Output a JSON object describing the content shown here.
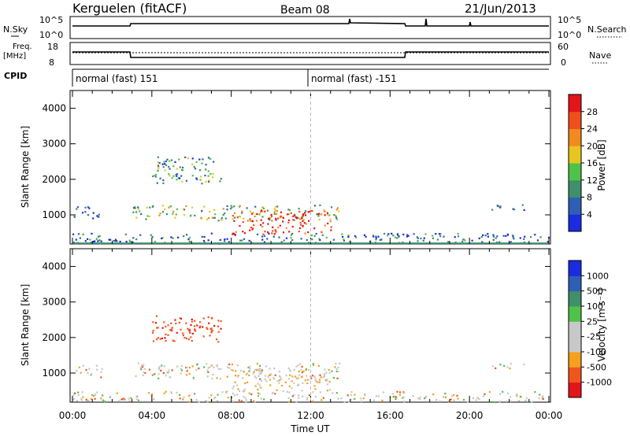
{
  "header": {
    "station": "Kerguelen (fitACF)",
    "beam": "Beam 08",
    "date": "21/Jun/2013"
  },
  "left_labels": {
    "nsky": "N.Sky",
    "freq_line1": "Freq.",
    "freq_line2": "[MHz]",
    "cpid": "CPID"
  },
  "right_labels": {
    "nsearch": "N.Search",
    "nave": "Nave"
  },
  "nsky_ticks": {
    "top": "10^5",
    "bottom": "10^0"
  },
  "freq_ticks": {
    "top": "18",
    "bottom": "8"
  },
  "nave_ticks": {
    "top": "60",
    "bottom": "0"
  },
  "cpid_entries": [
    {
      "label": "normal (fast) 151",
      "start_hour": 0
    },
    {
      "label": "normal (fast) -151",
      "start_hour": 12
    }
  ],
  "colors": {
    "power_scale": [
      "#1a2be0",
      "#2f5fb5",
      "#3f8f6a",
      "#4fc24a",
      "#e8c620",
      "#f28a1e",
      "#f04e1a",
      "#e4141c"
    ],
    "velocity_scale": [
      "#e4141c",
      "#f0561c",
      "#f5a01e",
      "#c8c8c8",
      "#c8c8c8",
      "#4fc24a",
      "#3f8f6a",
      "#2f5fb5",
      "#1a2be0"
    ]
  },
  "chart_data": [
    {
      "type": "heatmap",
      "title": "Power",
      "ylabel": "Slant Range [km]",
      "colorbar_label": "Power [dB]",
      "colorbar_ticks": [
        "4",
        "8",
        "12",
        "16",
        "20",
        "24",
        "28"
      ],
      "x_ticks": [
        "00:00",
        "04:00",
        "08:00",
        "12:00",
        "16:00",
        "20:00",
        "00:00"
      ],
      "y_ticks": [
        "1000",
        "2000",
        "3000",
        "4000"
      ],
      "ylim": [
        180,
        4500
      ],
      "xlim_hours": [
        0,
        24
      ],
      "regions": [
        {
          "name": "near-range",
          "t": [
            0,
            24
          ],
          "r": [
            200,
            500
          ],
          "level": 0.2
        },
        {
          "name": "band-1000km-early",
          "t": [
            0,
            1.5
          ],
          "r": [
            900,
            1250
          ],
          "level": 0.15
        },
        {
          "name": "band-1000km-main",
          "t": [
            3.0,
            13.5
          ],
          "r": [
            850,
            1300
          ],
          "level": 0.45
        },
        {
          "name": "upper-patch",
          "t": [
            4.0,
            7.5
          ],
          "r": [
            1900,
            2650
          ],
          "level": 0.35
        },
        {
          "name": "strong-core",
          "t": [
            8.0,
            13.0
          ],
          "r": [
            450,
            1150
          ],
          "level": 0.9
        },
        {
          "name": "late-band",
          "t": [
            21.0,
            22.8
          ],
          "r": [
            1150,
            1300
          ],
          "level": 0.15
        }
      ]
    },
    {
      "type": "heatmap",
      "title": "Velocity",
      "ylabel": "Slant Range [km]",
      "xlabel": "Time UT",
      "colorbar_label": "Velocity [m s⁻¹]",
      "colorbar_ticks": [
        "-1000",
        "-500",
        "-100",
        "-25",
        "25",
        "100",
        "500",
        "1000"
      ],
      "x_ticks": [
        "00:00",
        "04:00",
        "08:00",
        "12:00",
        "16:00",
        "20:00",
        "00:00"
      ],
      "y_ticks": [
        "1000",
        "2000",
        "3000",
        "4000"
      ],
      "ylim": [
        180,
        4500
      ],
      "xlim_hours": [
        0,
        24
      ]
    }
  ]
}
